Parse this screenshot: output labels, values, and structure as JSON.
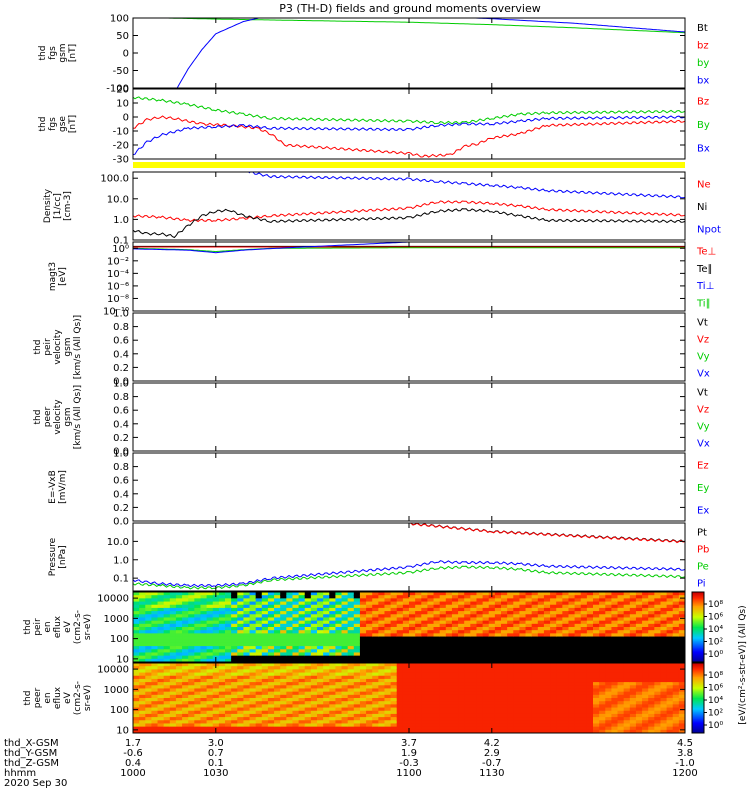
{
  "chart_data": {
    "type": "line",
    "title": "P3 (TH-D) fields and ground moments overview",
    "x_ticks": [
      "1000",
      "1030",
      "1100",
      "1130",
      "1200"
    ],
    "x_range": [
      1000,
      1200
    ],
    "ephemeris": {
      "row_labels": [
        "thd_X-GSM",
        "thd_Y-GSM",
        "thd_Z-GSM",
        "hhmm",
        "2020 Sep 30"
      ],
      "columns": [
        [
          "1.7",
          "-0.6",
          "0.4",
          "1000"
        ],
        [
          "3.0",
          "0.7",
          "0.1",
          "1030"
        ],
        [
          "3.7",
          "1.9",
          "-0.3",
          "1100"
        ],
        [
          "4.2",
          "2.9",
          "-0.7",
          "1130"
        ],
        [
          "4.5",
          "3.8",
          "-1.0",
          "1200"
        ]
      ]
    },
    "panels": [
      {
        "id": "fgs_gsm",
        "ylabel": [
          "thd",
          "fgs",
          "gsm",
          "[nT]"
        ],
        "ylim": [
          -100,
          100
        ],
        "yticks": [
          "100",
          "50",
          "0",
          "-50",
          "-100"
        ],
        "legend": [
          {
            "label": "Bt",
            "color": "#000000"
          },
          {
            "label": "bz",
            "color": "#ff0000"
          },
          {
            "label": "by",
            "color": "#00cc00"
          },
          {
            "label": "bx",
            "color": "#0000ff"
          }
        ],
        "series": [
          {
            "name": "by",
            "color": "#00cc00",
            "x": [
              1012,
              1030,
              1060,
              1100,
              1130,
              1160,
              1180,
              1200
            ],
            "y": [
              100,
              97,
              93,
              88,
              81,
              72,
              65,
              58
            ]
          },
          {
            "name": "bx",
            "color": "#0000ff",
            "x": [
              1016,
              1020,
              1025,
              1030,
              1040,
              1050,
              1060,
              1100,
              1130,
              1160,
              1200
            ],
            "y": [
              -100,
              -45,
              10,
              55,
              90,
              108,
              112,
              108,
              98,
              85,
              60
            ]
          }
        ]
      },
      {
        "id": "fgs_gse",
        "ylabel": [
          "thd",
          "fgs",
          "gse",
          "[nT]"
        ],
        "ylim": [
          -30,
          20
        ],
        "yticks": [
          "20",
          "10",
          "0",
          "-10",
          "-20",
          "-30"
        ],
        "legend": [
          {
            "label": "Bz",
            "color": "#ff0000"
          },
          {
            "label": "By",
            "color": "#00cc00"
          },
          {
            "label": "Bx",
            "color": "#0000ff"
          }
        ],
        "series": [
          {
            "name": "By",
            "color": "#00cc00",
            "x": [
              1000,
              1010,
              1020,
              1030,
              1040,
              1050,
              1100,
              1110,
              1120,
              1130,
              1140,
              1150,
              1200
            ],
            "y": [
              14,
              12,
              9,
              5,
              2,
              -1,
              -3,
              -4,
              -4,
              -1,
              2,
              3,
              4
            ]
          },
          {
            "name": "Bz",
            "color": "#ff0000",
            "x": [
              1000,
              1005,
              1010,
              1015,
              1025,
              1035,
              1045,
              1050,
              1055,
              1100,
              1105,
              1115,
              1120,
              1125,
              1130,
              1140,
              1150,
              1200
            ],
            "y": [
              -8,
              -2,
              0,
              -1,
              -5,
              -6,
              -8,
              -12,
              -20,
              -26,
              -28,
              -27,
              -21,
              -19,
              -15,
              -12,
              -6,
              -3
            ]
          },
          {
            "name": "Bx",
            "color": "#0000ff",
            "x": [
              1000,
              1005,
              1010,
              1020,
              1030,
              1040,
              1050,
              1100,
              1110,
              1120,
              1130,
              1140,
              1150,
              1200
            ],
            "y": [
              -27,
              -18,
              -13,
              -8,
              -7,
              -6,
              -8,
              -9,
              -6,
              -5,
              -5,
              -3,
              -1,
              0
            ]
          }
        ]
      },
      {
        "id": "density",
        "ylabel": [
          "Density",
          "[1/cc]",
          "[cm-3]"
        ],
        "log": true,
        "ylim": [
          0.1,
          200
        ],
        "yticks": [
          "100.0",
          "10.0",
          "1.0",
          "0.1"
        ],
        "legend": [
          {
            "label": "Ne",
            "color": "#ff0000"
          },
          {
            "label": "Ni",
            "color": "#000000"
          },
          {
            "label": "Npot",
            "color": "#0000ff"
          }
        ],
        "series": [
          {
            "name": "Ne",
            "color": "#ff0000",
            "x": [
              1000,
              1010,
              1020,
              1030,
              1040,
              1050,
              1100,
              1110,
              1120,
              1130,
              1140,
              1150,
              1200
            ],
            "y": [
              1.5,
              1.3,
              0.9,
              0.9,
              1.1,
              1.5,
              3.5,
              7,
              7,
              6,
              4.5,
              3,
              1.6
            ]
          },
          {
            "name": "Ni",
            "color": "#000000",
            "x": [
              1000,
              1005,
              1010,
              1015,
              1020,
              1025,
              1030,
              1035,
              1040,
              1050,
              1100,
              1110,
              1120,
              1130,
              1140,
              1150,
              1200
            ],
            "y": [
              0.3,
              0.2,
              0.2,
              0.15,
              0.5,
              1.5,
              2.5,
              2.8,
              1.5,
              0.8,
              1.2,
              2.5,
              3,
              2.5,
              1.5,
              0.9,
              0.8
            ]
          },
          {
            "name": "Npot",
            "color": "#0000ff",
            "x": [
              1042,
              1050,
              1100,
              1110,
              1120,
              1130,
              1140,
              1150,
              1200
            ],
            "y": [
              200,
              120,
              90,
              70,
              55,
              45,
              35,
              25,
              12
            ]
          }
        ]
      },
      {
        "id": "magt3",
        "ylabel": [
          "magt3",
          "[eV]"
        ],
        "log": true,
        "ylim": [
          1e-10,
          10
        ],
        "yticks": [
          "10⁰",
          "10⁻²",
          "10⁻⁴",
          "10⁻⁶",
          "10⁻⁸",
          "10⁻¹⁰"
        ],
        "legend": [
          {
            "label": "Te⊥",
            "color": "#ff0000"
          },
          {
            "label": "Te∥",
            "color": "#000000"
          },
          {
            "label": "Ti⊥",
            "color": "#0000ff"
          },
          {
            "label": "Ti∥",
            "color": "#00cc00"
          }
        ],
        "series": [
          {
            "name": "Te∥",
            "color": "#000000",
            "x": [
              1000,
              1100,
              1200
            ],
            "y": [
              2,
              2,
              2
            ]
          },
          {
            "name": "Te⊥",
            "color": "#ff0000",
            "x": [
              1000,
              1100,
              1200
            ],
            "y": [
              1.6,
              1.6,
              1.6
            ]
          },
          {
            "name": "Ti∥",
            "color": "#00cc00",
            "x": [
              1000,
              1020,
              1030,
              1040,
              1050,
              1100,
              1200
            ],
            "y": [
              1,
              0.6,
              0.3,
              0.6,
              1,
              1.2,
              1.2
            ]
          },
          {
            "name": "Ti⊥",
            "color": "#0000ff",
            "x": [
              1000,
              1020,
              1030,
              1040,
              1050,
              1100,
              1200
            ],
            "y": [
              0.8,
              0.5,
              0.2,
              0.5,
              0.9,
              10,
              10
            ]
          }
        ]
      },
      {
        "id": "peir_velocity",
        "ylabel": [
          "thd",
          "peir",
          "velocity",
          "gsm",
          "[km/s (All Qs)]"
        ],
        "ylim": [
          0,
          1
        ],
        "yticks": [
          "1.0",
          "0.8",
          "0.6",
          "0.4",
          "0.2",
          "0.0"
        ],
        "legend": [
          {
            "label": "Vt",
            "color": "#000000"
          },
          {
            "label": "Vz",
            "color": "#ff0000"
          },
          {
            "label": "Vy",
            "color": "#00cc00"
          },
          {
            "label": "Vx",
            "color": "#0000ff"
          }
        ],
        "series": []
      },
      {
        "id": "peer_velocity",
        "ylabel": [
          "thd",
          "peer",
          "velocity",
          "gsm",
          "[km/s (All Qs)]"
        ],
        "ylim": [
          0,
          1
        ],
        "yticks": [
          "1.0",
          "0.8",
          "0.6",
          "0.4",
          "0.2",
          "0.0"
        ],
        "legend": [
          {
            "label": "Vt",
            "color": "#000000"
          },
          {
            "label": "Vz",
            "color": "#ff0000"
          },
          {
            "label": "Vy",
            "color": "#00cc00"
          },
          {
            "label": "Vx",
            "color": "#0000ff"
          }
        ],
        "series": []
      },
      {
        "id": "efield",
        "ylabel": [
          "E=-VxB",
          "[mV/m]"
        ],
        "ylim": [
          0,
          1
        ],
        "yticks": [
          "1.0",
          "0.8",
          "0.6",
          "0.4",
          "0.2",
          "0.0"
        ],
        "legend": [
          {
            "label": "Ez",
            "color": "#ff0000"
          },
          {
            "label": "Ey",
            "color": "#00cc00"
          },
          {
            "label": "Ex",
            "color": "#0000ff"
          }
        ],
        "series": []
      },
      {
        "id": "pressure",
        "ylabel": [
          "Pressure",
          "[nPa]"
        ],
        "log": true,
        "ylim": [
          0.02,
          100
        ],
        "yticks": [
          "10.0",
          "1.0",
          "0.1"
        ],
        "legend": [
          {
            "label": "Pt",
            "color": "#000000"
          },
          {
            "label": "Pb",
            "color": "#ff0000"
          },
          {
            "label": "Pe",
            "color": "#00cc00"
          },
          {
            "label": "Pi",
            "color": "#0000ff"
          }
        ],
        "series": [
          {
            "name": "Pt",
            "color": "#000000",
            "x": [
              1100,
              1130,
              1200
            ],
            "y": [
              95,
              35,
              10
            ]
          },
          {
            "name": "Pb",
            "color": "#ff0000",
            "x": [
              1100,
              1130,
              1200
            ],
            "y": [
              93,
              34,
              9.5
            ]
          },
          {
            "name": "Pe",
            "color": "#00cc00",
            "x": [
              1000,
              1010,
              1020,
              1030,
              1040,
              1050,
              1100,
              1110,
              1120,
              1130,
              1140,
              1150,
              1200
            ],
            "y": [
              0.05,
              0.04,
              0.03,
              0.03,
              0.04,
              0.08,
              0.2,
              0.35,
              0.4,
              0.38,
              0.3,
              0.2,
              0.12
            ]
          },
          {
            "name": "Pi",
            "color": "#0000ff",
            "x": [
              1000,
              1005,
              1010,
              1020,
              1030,
              1040,
              1050,
              1100,
              1110,
              1120,
              1130,
              1140,
              1150,
              1200
            ],
            "y": [
              0.08,
              0.06,
              0.05,
              0.04,
              0.04,
              0.05,
              0.1,
              0.4,
              0.8,
              0.7,
              0.7,
              0.6,
              0.45,
              0.3
            ]
          }
        ]
      },
      {
        "id": "peir_en_eflux",
        "type": "heatmap",
        "ylabel": [
          "thd",
          "peir",
          "en",
          "eflux",
          "eV",
          "(cm2-s-",
          "sr-eV)"
        ],
        "log": true,
        "ylim": [
          7,
          20000
        ],
        "yticks": [
          "10000",
          "1000",
          "100",
          "10"
        ]
      },
      {
        "id": "peer_en_eflux",
        "type": "heatmap",
        "ylabel": [
          "thd",
          "peer",
          "en",
          "eflux",
          "eV",
          "(cm2-s-",
          "sr-eV)"
        ],
        "log": true,
        "ylim": [
          7,
          20000
        ],
        "yticks": [
          "10000",
          "1000",
          "100",
          "10"
        ]
      }
    ],
    "colorbar": {
      "label": "[eV/(cm²-s-str-eV)] (All Qs)",
      "ticks": [
        "10⁸",
        "10⁶",
        "10⁴",
        "10²",
        "10⁰"
      ],
      "label_upper": "[eV/(cm²-s-str-eV)] (All Qs)"
    },
    "colorbar_ticks_lower": [
      "10⁸",
      "10⁶",
      "10⁴",
      "10²",
      "10⁰"
    ]
  }
}
